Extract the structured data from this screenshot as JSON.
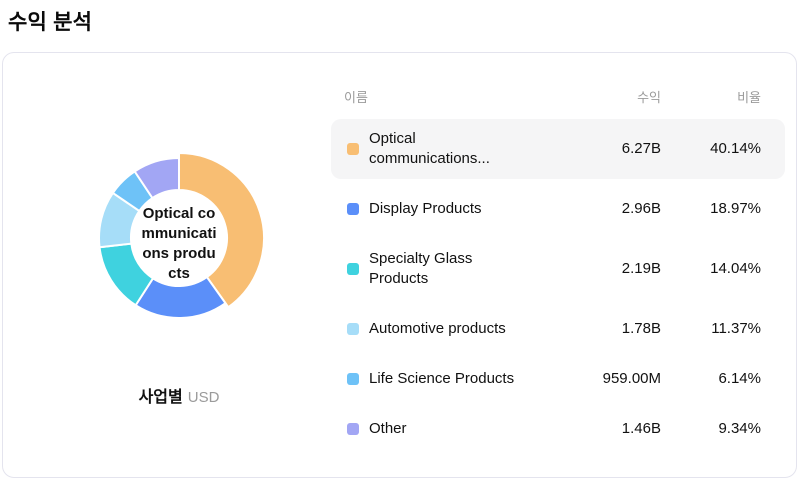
{
  "page": {
    "title": "수익 분석"
  },
  "chart": {
    "center_label_lines": [
      "Optical co",
      "mmunicati",
      "ons produ",
      "cts"
    ],
    "caption": {
      "label": "사업별",
      "unit": "USD"
    }
  },
  "chart_data": {
    "type": "pie",
    "donut": true,
    "title": "수익 분석",
    "group_by": "사업별",
    "unit": "USD",
    "legend_position": "right-table",
    "highlighted_segment": "Optical communications products",
    "segments": [
      {
        "name": "Optical communications products",
        "revenue": "6.27B",
        "percent": 40.14,
        "color": "#F8BE73",
        "highlighted": true
      },
      {
        "name": "Display Products",
        "revenue": "2.96B",
        "percent": 18.97,
        "color": "#5B8FF9",
        "highlighted": false
      },
      {
        "name": "Specialty Glass Products",
        "revenue": "2.19B",
        "percent": 14.04,
        "color": "#3FD2DF",
        "highlighted": false
      },
      {
        "name": "Automotive products",
        "revenue": "1.78B",
        "percent": 11.37,
        "color": "#A6DDF8",
        "highlighted": false
      },
      {
        "name": "Life Science Products",
        "revenue": "959.00M",
        "percent": 6.14,
        "color": "#6EC2F7",
        "highlighted": false
      },
      {
        "name": "Other",
        "revenue": "1.46B",
        "percent": 9.34,
        "color": "#A2A6F4",
        "highlighted": false
      }
    ]
  },
  "table": {
    "headers": {
      "name": "이름",
      "revenue": "수익",
      "ratio": "비율"
    },
    "rows": [
      {
        "name": "Optical communications...",
        "name_lines": [
          "Optical",
          "communications..."
        ],
        "revenue": "6.27B",
        "ratio": "40.14%",
        "color": "#F8BE73",
        "highlighted": true
      },
      {
        "name": "Display Products",
        "name_lines": null,
        "revenue": "2.96B",
        "ratio": "18.97%",
        "color": "#5B8FF9",
        "highlighted": false
      },
      {
        "name": "Specialty Glass Products",
        "name_lines": [
          "Specialty Glass",
          "Products"
        ],
        "revenue": "2.19B",
        "ratio": "14.04%",
        "color": "#3FD2DF",
        "highlighted": false
      },
      {
        "name": "Automotive products",
        "name_lines": null,
        "revenue": "1.78B",
        "ratio": "11.37%",
        "color": "#A6DDF8",
        "highlighted": false
      },
      {
        "name": "Life Science Products",
        "name_lines": null,
        "revenue": "959.00M",
        "ratio": "6.14%",
        "color": "#6EC2F7",
        "highlighted": false
      },
      {
        "name": "Other",
        "name_lines": null,
        "revenue": "1.46B",
        "ratio": "9.34%",
        "color": "#A2A6F4",
        "highlighted": false
      }
    ]
  }
}
